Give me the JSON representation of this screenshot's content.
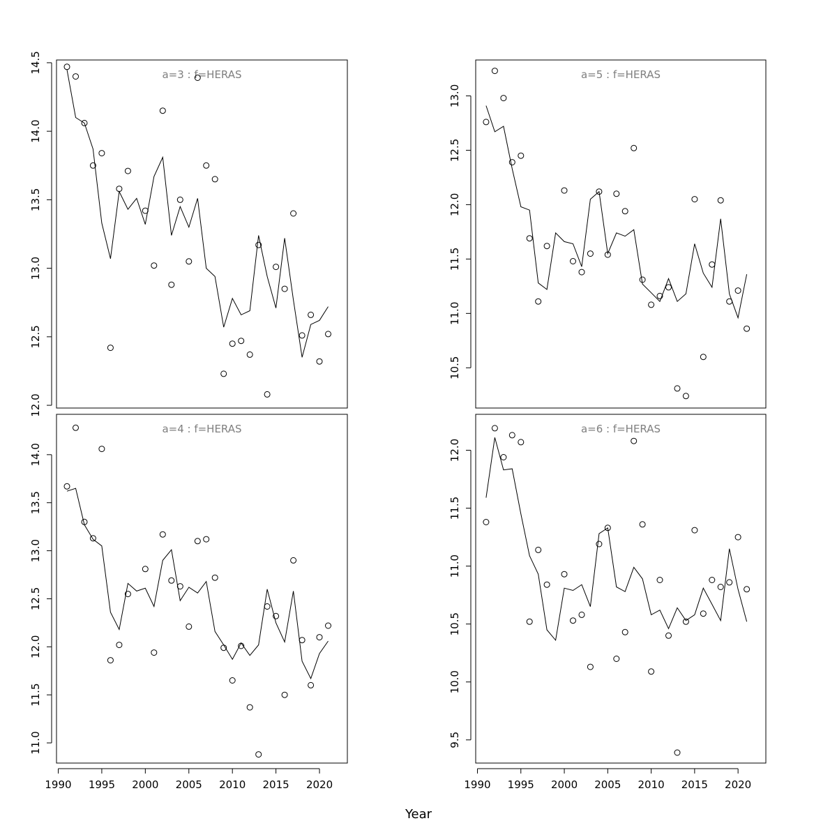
{
  "chart_data": {
    "type": "scatter",
    "xlabel": "Year",
    "x": [
      1991,
      1992,
      1993,
      1994,
      1995,
      1996,
      1997,
      1998,
      1999,
      2000,
      2001,
      2002,
      2003,
      2004,
      2005,
      2006,
      2007,
      2008,
      2009,
      2010,
      2011,
      2012,
      2013,
      2014,
      2015,
      2016,
      2017,
      2018,
      2019,
      2020,
      2021
    ],
    "xticks": [
      1990,
      1995,
      2000,
      2005,
      2010,
      2015,
      2020
    ],
    "xlim": [
      1989.8,
      2023.2
    ],
    "panels": [
      {
        "title": "a=3  :  f=HERAS",
        "position": "top-left",
        "ylim": [
          11.98,
          14.52
        ],
        "yticks": [
          "12.0",
          "12.5",
          "13.0",
          "13.5",
          "14.0",
          "14.5"
        ],
        "series": [
          {
            "name": "observed",
            "style": "points",
            "values": [
              14.47,
              14.4,
              14.06,
              13.75,
              13.84,
              12.42,
              13.58,
              13.71,
              null,
              13.42,
              13.02,
              14.15,
              12.88,
              13.5,
              13.05,
              14.39,
              13.75,
              13.65,
              12.23,
              12.45,
              12.47,
              12.37,
              13.17,
              12.08,
              13.01,
              12.85,
              13.4,
              12.51,
              12.66,
              12.32,
              12.52
            ]
          },
          {
            "name": "fitted",
            "style": "line",
            "values": [
              14.45,
              14.1,
              14.06,
              13.87,
              13.33,
              13.07,
              13.56,
              13.43,
              13.51,
              13.32,
              13.67,
              13.81,
              13.24,
              13.45,
              13.3,
              13.51,
              13.0,
              12.94,
              12.57,
              12.78,
              12.66,
              12.69,
              13.24,
              12.94,
              12.71,
              13.22,
              12.77,
              12.35,
              12.59,
              12.62,
              12.72
            ]
          }
        ]
      },
      {
        "title": "a=5  :  f=HERAS",
        "position": "top-right",
        "ylim": [
          10.13,
          13.33
        ],
        "yticks": [
          "10.5",
          "11.0",
          "11.5",
          "12.0",
          "12.5",
          "13.0"
        ],
        "series": [
          {
            "name": "observed",
            "style": "points",
            "values": [
              12.76,
              13.23,
              12.98,
              12.39,
              12.45,
              11.69,
              11.11,
              11.62,
              null,
              12.13,
              11.48,
              11.38,
              11.55,
              12.12,
              11.54,
              12.1,
              11.94,
              12.52,
              11.31,
              11.08,
              11.16,
              11.24,
              10.31,
              10.24,
              12.05,
              10.6,
              11.45,
              12.04,
              11.11,
              11.21,
              10.86
            ]
          },
          {
            "name": "fitted",
            "style": "line",
            "values": [
              12.91,
              12.67,
              12.72,
              12.33,
              11.98,
              11.95,
              11.28,
              11.22,
              11.74,
              11.66,
              11.64,
              11.43,
              12.05,
              12.12,
              11.55,
              11.74,
              11.71,
              11.77,
              11.27,
              11.19,
              11.11,
              11.32,
              11.11,
              11.18,
              11.64,
              11.37,
              11.24,
              11.87,
              11.18,
              10.96,
              11.36
            ]
          }
        ]
      },
      {
        "title": "a=4  :  f=HERAS",
        "position": "bottom-left",
        "ylim": [
          10.79,
          14.42
        ],
        "yticks": [
          "11.0",
          "11.5",
          "12.0",
          "12.5",
          "13.0",
          "13.5",
          "14.0"
        ],
        "series": [
          {
            "name": "observed",
            "style": "points",
            "values": [
              13.67,
              14.28,
              13.3,
              13.13,
              14.06,
              11.86,
              12.02,
              12.55,
              null,
              12.81,
              11.94,
              13.17,
              12.69,
              12.63,
              12.21,
              13.1,
              13.12,
              12.72,
              11.99,
              11.65,
              12.01,
              11.37,
              10.88,
              12.42,
              12.32,
              11.5,
              12.9,
              12.07,
              11.6,
              12.1,
              12.22
            ]
          },
          {
            "name": "fitted",
            "style": "line",
            "values": [
              13.62,
              13.65,
              13.27,
              13.12,
              13.05,
              12.36,
              12.18,
              12.66,
              12.58,
              12.61,
              12.42,
              12.9,
              13.01,
              12.48,
              12.62,
              12.56,
              12.68,
              12.16,
              12.02,
              11.87,
              12.04,
              11.91,
              12.02,
              12.6,
              12.25,
              12.05,
              12.58,
              11.85,
              11.67,
              11.93,
              12.06
            ]
          }
        ]
      },
      {
        "title": "a=6  :  f=HERAS",
        "position": "bottom-right",
        "ylim": [
          9.3,
          12.31
        ],
        "yticks": [
          "9.5",
          "10.0",
          "10.5",
          "11.0",
          "11.5",
          "12.0"
        ],
        "series": [
          {
            "name": "observed",
            "style": "points",
            "values": [
              11.38,
              12.19,
              11.94,
              12.13,
              12.07,
              10.52,
              11.14,
              10.84,
              null,
              10.93,
              10.53,
              10.58,
              10.13,
              11.19,
              11.33,
              10.2,
              10.43,
              12.08,
              11.36,
              10.09,
              10.88,
              10.4,
              9.39,
              10.52,
              11.31,
              10.59,
              10.88,
              10.82,
              10.86,
              11.25,
              10.8
            ]
          },
          {
            "name": "fitted",
            "style": "line",
            "values": [
              11.59,
              12.11,
              11.83,
              11.84,
              11.45,
              11.09,
              10.93,
              10.45,
              10.36,
              10.81,
              10.79,
              10.84,
              10.65,
              11.28,
              11.33,
              10.82,
              10.78,
              10.99,
              10.89,
              10.58,
              10.62,
              10.46,
              10.64,
              10.53,
              10.58,
              10.81,
              10.67,
              10.53,
              11.15,
              10.8,
              10.52
            ]
          }
        ]
      }
    ]
  }
}
